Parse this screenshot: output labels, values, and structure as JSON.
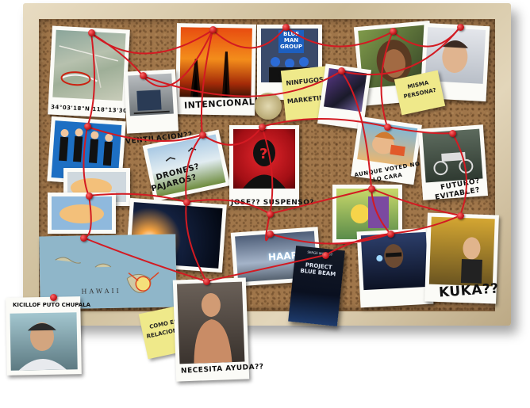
{
  "captions": {
    "coords": "34°03'18\"N 118°13'30\"W",
    "intencional": "INTENCIONAL??",
    "ninfugos": "NINFUGOS?",
    "marketing": "MARKETING?",
    "ventilacion": "VENTILACION??",
    "misma": "MISMA",
    "persona": "PERSONA?",
    "drones": "DRONES?",
    "pajaros": "PAJAROS?",
    "jose": "JOSE?? SUSPENSO?",
    "aunque": "AUNQUE VOTED NO",
    "lo_cara": "LO CARA",
    "futuro": "FUTURO?",
    "evitable": "EVITABLE?",
    "kuka": "KUKA??",
    "hawaii": "HAWAII",
    "como": "COMO ESTA",
    "relacionado": "RELACIONADO?",
    "necesita": "NECESITA AYUDA??",
    "kicillof": "KICILLOF PUTO CHUPALA"
  },
  "logos": {
    "blueman_line1": "BLUE",
    "blueman_line2": "MAN",
    "blueman_line3": "GROUP",
    "haarp": "HAARP",
    "book_title_1": "PROJECT",
    "book_title_2": "BLUE BEAM",
    "book_author": "SERGE MONAST"
  },
  "colors": {
    "string": "#d31a22",
    "frame": "#d9cbab",
    "cork": "#a0764a",
    "note": "#efe98a"
  }
}
